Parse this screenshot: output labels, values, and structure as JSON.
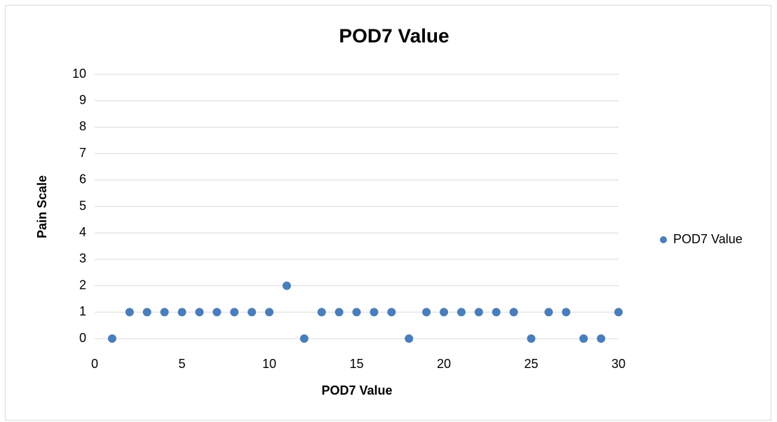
{
  "chart_data": {
    "type": "scatter",
    "title": "POD7 Value",
    "x_label": "POD7 Value",
    "y_label": "Pain Scale",
    "x": [
      1,
      2,
      3,
      4,
      5,
      6,
      7,
      8,
      9,
      10,
      11,
      12,
      13,
      14,
      15,
      16,
      17,
      18,
      19,
      20,
      21,
      22,
      23,
      24,
      25,
      26,
      27,
      28,
      29,
      30
    ],
    "series": [
      {
        "name": "POD7 Value",
        "color": "#4a7ebb",
        "values": [
          0,
          1,
          1,
          1,
          1,
          1,
          1,
          1,
          1,
          1,
          2,
          0,
          1,
          1,
          1,
          1,
          1,
          0,
          1,
          1,
          1,
          1,
          1,
          1,
          0,
          1,
          1,
          0,
          0,
          1
        ]
      }
    ],
    "xlim": [
      0,
      30
    ],
    "xticks": [
      0,
      5,
      10,
      15,
      20,
      25,
      30
    ],
    "ylim": [
      0,
      10
    ],
    "yticks": [
      0,
      1,
      2,
      3,
      4,
      5,
      6,
      7,
      8,
      9,
      10
    ],
    "grid": true,
    "legend": "right"
  }
}
